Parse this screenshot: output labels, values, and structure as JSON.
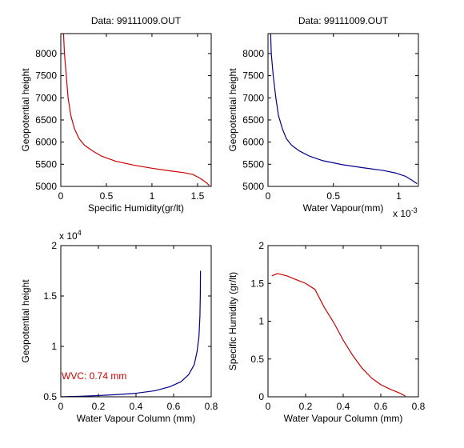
{
  "window": {
    "background": "#ffffff"
  },
  "chart_data": [
    {
      "id": "top-left",
      "type": "line",
      "title": "Data: 99111009.OUT",
      "xlabel": "Specific Humidity(gr/lt)",
      "ylabel": "Geopotential height",
      "xlim": [
        0,
        1.65
      ],
      "ylim": [
        5000,
        8450
      ],
      "xticks": [
        0,
        0.5,
        1,
        1.5
      ],
      "xtick_labels": [
        "0",
        "0.5",
        "1",
        "1.5"
      ],
      "yticks": [
        5000,
        5500,
        6000,
        6500,
        7000,
        7500,
        8000
      ],
      "ytick_labels": [
        "5000",
        "5500",
        "6000",
        "6500",
        "7000",
        "7500",
        "8000"
      ],
      "grid": false,
      "series": [
        {
          "color": "#cc0000",
          "points": [
            [
              0.03,
              8450
            ],
            [
              0.04,
              8000
            ],
            [
              0.06,
              7500
            ],
            [
              0.08,
              7000
            ],
            [
              0.11,
              6600
            ],
            [
              0.15,
              6300
            ],
            [
              0.2,
              6080
            ],
            [
              0.26,
              5930
            ],
            [
              0.35,
              5800
            ],
            [
              0.45,
              5680
            ],
            [
              0.6,
              5570
            ],
            [
              0.8,
              5480
            ],
            [
              1.0,
              5410
            ],
            [
              1.2,
              5350
            ],
            [
              1.35,
              5310
            ],
            [
              1.45,
              5270
            ],
            [
              1.53,
              5180
            ],
            [
              1.6,
              5080
            ],
            [
              1.63,
              5020
            ]
          ]
        }
      ]
    },
    {
      "id": "top-right",
      "type": "line",
      "title": "Data: 99111009.OUT",
      "xlabel": "Water Vapour(mm)",
      "ylabel": "Geopotential height",
      "x_multiplier": "x 10",
      "x_multiplier_exp": "-3",
      "xlim": [
        0,
        1.15
      ],
      "ylim": [
        5000,
        8450
      ],
      "xticks": [
        0,
        0.5,
        1
      ],
      "xtick_labels": [
        "0",
        "0.5",
        "1"
      ],
      "yticks": [
        5000,
        5500,
        6000,
        6500,
        7000,
        7500,
        8000
      ],
      "ytick_labels": [
        "5000",
        "5500",
        "6000",
        "6500",
        "7000",
        "7500",
        "8000"
      ],
      "grid": false,
      "series": [
        {
          "color": "#00008b",
          "points": [
            [
              0.02,
              8450
            ],
            [
              0.025,
              8000
            ],
            [
              0.04,
              7500
            ],
            [
              0.06,
              7000
            ],
            [
              0.08,
              6600
            ],
            [
              0.11,
              6300
            ],
            [
              0.14,
              6080
            ],
            [
              0.18,
              5930
            ],
            [
              0.24,
              5800
            ],
            [
              0.32,
              5680
            ],
            [
              0.42,
              5580
            ],
            [
              0.57,
              5490
            ],
            [
              0.73,
              5420
            ],
            [
              0.88,
              5360
            ],
            [
              0.98,
              5300
            ],
            [
              1.05,
              5230
            ],
            [
              1.1,
              5140
            ],
            [
              1.14,
              5060
            ]
          ]
        }
      ]
    },
    {
      "id": "bottom-left",
      "type": "line",
      "title": "",
      "xlabel": "Water Vapour Column (mm)",
      "ylabel": "Geopotential height",
      "y_multiplier": "x 10",
      "y_multiplier_exp": "4",
      "xlim": [
        0,
        0.8
      ],
      "ylim": [
        0.5,
        2
      ],
      "xticks": [
        0,
        0.2,
        0.4,
        0.6,
        0.8
      ],
      "xtick_labels": [
        "0",
        "0.2",
        "0.4",
        "0.6",
        "0.8"
      ],
      "yticks": [
        0.5,
        1,
        1.5,
        2
      ],
      "ytick_labels": [
        "0.5",
        "1",
        "1.5",
        "2"
      ],
      "grid": false,
      "annotation": {
        "text": "WVC: 0.74 mm",
        "color": "#cc0000"
      },
      "series": [
        {
          "color": "#00008b",
          "points": [
            [
              0.0,
              0.5
            ],
            [
              0.1,
              0.505
            ],
            [
              0.2,
              0.512
            ],
            [
              0.3,
              0.522
            ],
            [
              0.4,
              0.535
            ],
            [
              0.5,
              0.56
            ],
            [
              0.58,
              0.6
            ],
            [
              0.64,
              0.65
            ],
            [
              0.68,
              0.72
            ],
            [
              0.71,
              0.82
            ],
            [
              0.725,
              0.95
            ],
            [
              0.735,
              1.1
            ],
            [
              0.74,
              1.3
            ],
            [
              0.742,
              1.5
            ],
            [
              0.743,
              1.75
            ]
          ]
        }
      ]
    },
    {
      "id": "bottom-right",
      "type": "line",
      "title": "",
      "xlabel": "Water Vapour Column (mm)",
      "ylabel": "Specific Humidity (gr/lt)",
      "xlim": [
        0,
        0.8
      ],
      "ylim": [
        0,
        2
      ],
      "xticks": [
        0,
        0.2,
        0.4,
        0.6,
        0.8
      ],
      "xtick_labels": [
        "0",
        "0.2",
        "0.4",
        "0.6",
        "0.8"
      ],
      "yticks": [
        0,
        0.5,
        1,
        1.5,
        2
      ],
      "ytick_labels": [
        "0",
        "0.5",
        "1",
        "1.5",
        "2"
      ],
      "grid": false,
      "series": [
        {
          "color": "#cc0000",
          "points": [
            [
              0.02,
              1.6
            ],
            [
              0.05,
              1.63
            ],
            [
              0.1,
              1.6
            ],
            [
              0.15,
              1.55
            ],
            [
              0.2,
              1.5
            ],
            [
              0.25,
              1.42
            ],
            [
              0.3,
              1.18
            ],
            [
              0.35,
              0.98
            ],
            [
              0.4,
              0.75
            ],
            [
              0.45,
              0.55
            ],
            [
              0.5,
              0.38
            ],
            [
              0.55,
              0.25
            ],
            [
              0.6,
              0.16
            ],
            [
              0.65,
              0.1
            ],
            [
              0.7,
              0.05
            ],
            [
              0.73,
              0.01
            ]
          ]
        }
      ]
    }
  ]
}
